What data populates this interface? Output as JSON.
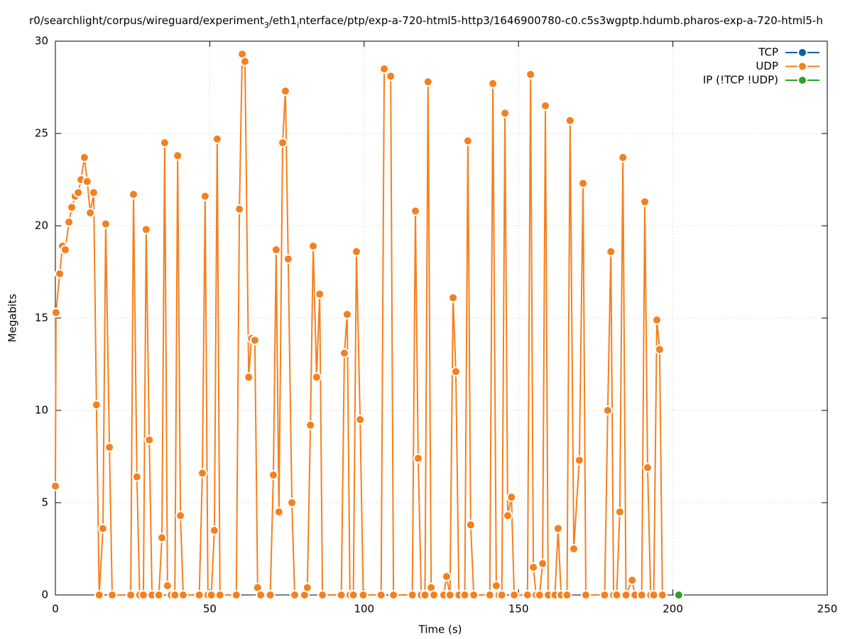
{
  "chart_data": {
    "type": "line",
    "title": "r0/searchlight/corpus/wireguard/experiment_3/eth1_interface/ptp/exp-a-720-html5-http3/1646900780-c0.c5s3wgptp.hdumb.pharos-exp-a-720-html5-h",
    "x_label": "Time (s)",
    "y_label": "Megabits",
    "xlim": [
      0,
      250
    ],
    "xticks": [
      0,
      50,
      100,
      150,
      200,
      250
    ],
    "ylim": [
      0,
      30
    ],
    "yticks": [
      0,
      5,
      10,
      15,
      20,
      25,
      30
    ],
    "grid": true,
    "legend": "top-right",
    "series": [
      {
        "name": "TCP",
        "color": "#0060ad",
        "x": [],
        "values": []
      },
      {
        "name": "UDP",
        "color": "#f5801e",
        "x": [
          0,
          0.2,
          1.4,
          2.3,
          3.2,
          4.4,
          5.3,
          6.4,
          7.4,
          8.3,
          9.4,
          10.3,
          11.3,
          12.4,
          13.3,
          14.2,
          15.4,
          16.3,
          17.5,
          18.4,
          24.4,
          25.3,
          26.4,
          27.3,
          28.5,
          29.4,
          30.4,
          31.3,
          33.5,
          34.5,
          35.4,
          36.3,
          37.5,
          38.7,
          39.6,
          40.5,
          41.4,
          46.6,
          47.6,
          48.5,
          49.4,
          50.5,
          51.5,
          52.4,
          53.3,
          58.6,
          59.6,
          60.5,
          61.4,
          62.6,
          63.5,
          64.6,
          65.5,
          66.5,
          69.6,
          70.6,
          71.5,
          72.4,
          73.6,
          74.5,
          75.4,
          76.6,
          77.5,
          80.7,
          81.6,
          82.6,
          83.5,
          84.6,
          85.6,
          86.5,
          92.6,
          93.6,
          94.5,
          95.4,
          96.5,
          97.5,
          98.7,
          99.7,
          105.5,
          106.5,
          108.6,
          109.5,
          115.6,
          116.6,
          117.5,
          118.5,
          119.7,
          120.7,
          121.7,
          122.6,
          125.8,
          126.7,
          127.8,
          128.8,
          129.7,
          130.7,
          132.6,
          133.6,
          134.5,
          135.5,
          140.7,
          141.7,
          142.8,
          143.7,
          144.6,
          145.6,
          146.5,
          147.7,
          148.6,
          152.9,
          153.9,
          154.8,
          155.7,
          156.8,
          157.8,
          158.7,
          159.6,
          161.8,
          162.8,
          163.8,
          165.7,
          166.7,
          167.9,
          169.7,
          170.9,
          171.8,
          177.9,
          178.9,
          179.9,
          180.8,
          181.8,
          182.8,
          183.8,
          184.8,
          186.8,
          187.7,
          189.9,
          190.9,
          191.8,
          192.8,
          193.8,
          194.8,
          195.7,
          196.6
        ],
        "values": [
          5.9,
          15.3,
          17.4,
          18.9,
          18.7,
          20.2,
          21.0,
          21.6,
          21.8,
          22.5,
          23.7,
          22.4,
          20.7,
          21.8,
          10.3,
          0,
          3.6,
          20.1,
          8.0,
          0,
          0,
          21.7,
          6.4,
          0,
          0,
          19.8,
          8.4,
          0,
          0,
          3.1,
          24.5,
          0.5,
          0,
          0,
          23.8,
          4.3,
          0,
          0,
          6.6,
          21.6,
          0,
          0,
          3.5,
          24.7,
          0,
          0,
          20.9,
          29.3,
          28.9,
          11.8,
          13.9,
          13.8,
          0.4,
          0,
          0,
          6.5,
          18.7,
          4.5,
          24.5,
          27.3,
          18.2,
          5.0,
          0,
          0,
          0.4,
          9.2,
          18.9,
          11.8,
          16.3,
          0,
          0,
          13.1,
          15.2,
          0,
          0,
          18.6,
          9.5,
          0,
          0,
          28.5,
          28.1,
          0,
          0,
          20.8,
          7.4,
          0,
          0,
          27.8,
          0.4,
          0,
          0,
          1.0,
          0,
          16.1,
          12.1,
          0,
          0,
          24.6,
          3.8,
          0,
          0,
          27.7,
          0.5,
          0,
          0,
          26.1,
          4.3,
          5.3,
          0,
          0,
          28.2,
          1.5,
          0,
          0,
          1.7,
          26.5,
          0,
          0,
          3.6,
          0,
          0,
          25.7,
          2.5,
          7.3,
          22.3,
          0,
          0,
          10.0,
          18.6,
          0,
          0,
          4.5,
          23.7,
          0,
          0.8,
          0,
          0,
          21.3,
          6.9,
          0,
          0,
          14.9,
          13.3,
          0
        ]
      },
      {
        "name": "IP (!TCP  !UDP)",
        "color": "#2ca02c",
        "x": [
          201.9
        ],
        "values": [
          0
        ]
      }
    ]
  }
}
